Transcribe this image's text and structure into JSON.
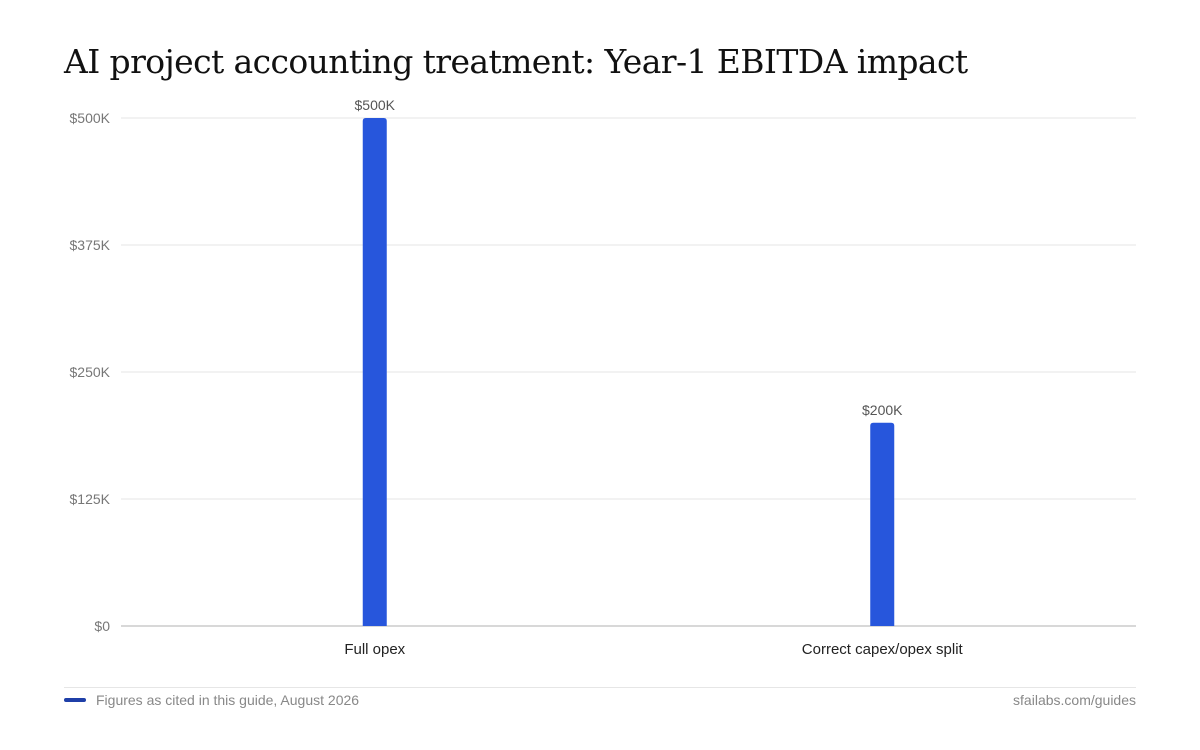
{
  "chart_data": {
    "type": "bar",
    "title": "AI project accounting treatment: Year-1 EBITDA impact",
    "categories": [
      "Full opex",
      "Correct capex/opex split"
    ],
    "values": [
      500000,
      200000
    ],
    "value_labels": [
      "$500K",
      "$200K"
    ],
    "y_ticks": [
      0,
      125000,
      250000,
      375000,
      500000
    ],
    "y_tick_labels": [
      "$0",
      "$125K",
      "$250K",
      "$375K",
      "$500K"
    ],
    "ylim": [
      0,
      500000
    ],
    "xlabel": "",
    "ylabel": "",
    "grid": true,
    "legend": "none"
  },
  "footer": {
    "note": "Figures as cited in this guide, August 2026",
    "source": "sfailabs.com/guides"
  },
  "colors": {
    "bar": "#2756dc",
    "legend_swatch": "#1f3fa8",
    "grid": "#e6e6e6",
    "axis": "#cccccc",
    "tick_text": "#777777",
    "value_text": "#555555",
    "category_text": "#222222",
    "title_text": "#111111"
  }
}
